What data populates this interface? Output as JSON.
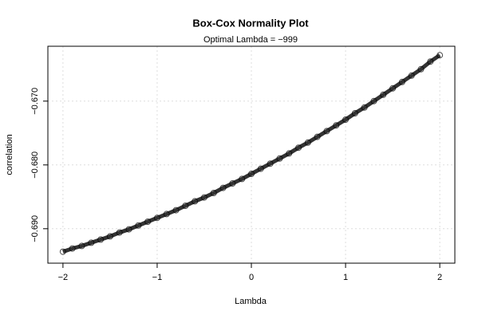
{
  "chart_data": {
    "type": "scatter",
    "title": "Box-Cox Normality Plot",
    "subtitle": "Optimal Lambda = −999",
    "x_label": "Lambda",
    "y_label": "correlation",
    "color": "#000000",
    "grid": true,
    "xlim": [
      -2.16,
      2.16
    ],
    "ylim": [
      -0.6954,
      -0.6614
    ],
    "xticks": [
      {
        "value": -2,
        "label": "−2"
      },
      {
        "value": -1,
        "label": "−1"
      },
      0,
      1,
      2
    ],
    "yticks": [
      {
        "value": -0.69,
        "label": "−0.690"
      },
      {
        "value": -0.68,
        "label": "−0.680"
      },
      {
        "value": -0.67,
        "label": "−0.670"
      }
    ],
    "x": [
      -2.0,
      -1.9,
      -1.8,
      -1.7,
      -1.6,
      -1.5,
      -1.4,
      -1.3,
      -1.2,
      -1.1,
      -1.0,
      -0.9,
      -0.8,
      -0.7,
      -0.6,
      -0.5,
      -0.4,
      -0.3,
      -0.2,
      -0.1,
      0.0,
      0.1,
      0.2,
      0.3,
      0.4,
      0.5,
      0.6,
      0.7,
      0.8,
      0.9,
      1.0,
      1.1,
      1.2,
      1.3,
      1.4,
      1.5,
      1.6,
      1.7,
      1.8,
      1.9,
      2.0
    ],
    "values": [
      -0.6936,
      -0.6931,
      -0.6927,
      -0.6922,
      -0.6917,
      -0.6912,
      -0.6906,
      -0.6901,
      -0.6895,
      -0.6889,
      -0.6883,
      -0.6877,
      -0.6871,
      -0.6864,
      -0.6857,
      -0.6851,
      -0.6844,
      -0.6836,
      -0.6829,
      -0.6822,
      -0.6814,
      -0.6806,
      -0.6798,
      -0.679,
      -0.6782,
      -0.6773,
      -0.6765,
      -0.6756,
      -0.6747,
      -0.6738,
      -0.6729,
      -0.6719,
      -0.671,
      -0.67,
      -0.669,
      -0.668,
      -0.667,
      -0.666,
      -0.665,
      -0.6638,
      -0.6628
    ]
  }
}
